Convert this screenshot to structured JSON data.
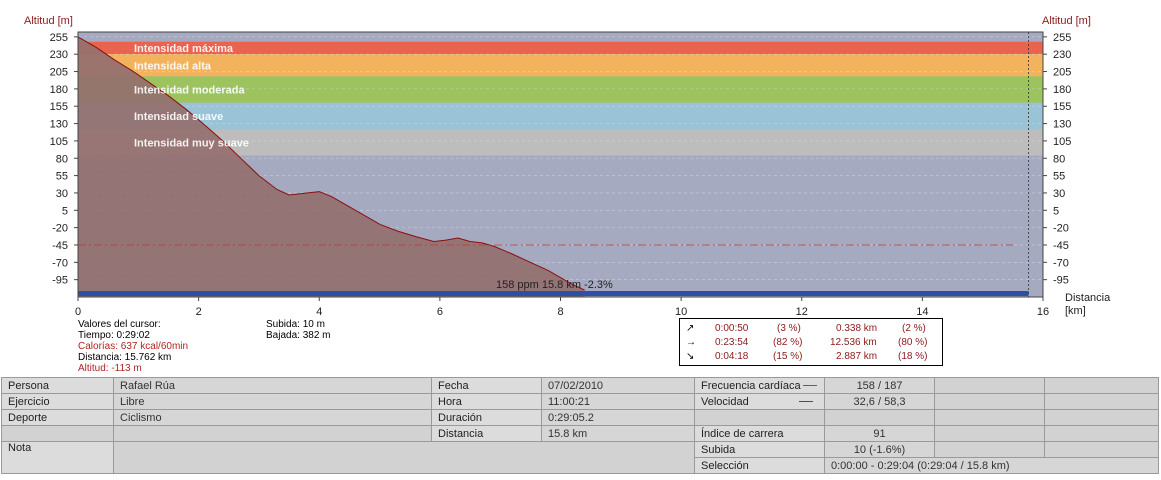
{
  "chart_data": {
    "type": "area",
    "y_left_label": "Altitud [m]",
    "y_right_label": "Altitud [m]",
    "x_label": "Distancia\n[km]",
    "xlim": [
      0,
      16
    ],
    "ylim": [
      -120,
      262
    ],
    "x_ticks": [
      "0",
      "2",
      "4",
      "6",
      "8",
      "10",
      "12",
      "14",
      "16"
    ],
    "y_ticks": [
      "255",
      "230",
      "205",
      "180",
      "155",
      "130",
      "105",
      "80",
      "55",
      "30",
      "5",
      "-20",
      "-45",
      "-70",
      "-95"
    ],
    "bands": [
      {
        "label": "Intensidad máxima",
        "from": 230,
        "to": 248,
        "color": "#e9634e"
      },
      {
        "label": "Intensidad alta",
        "from": 198,
        "to": 230,
        "color": "#f3b35c"
      },
      {
        "label": "Intensidad moderada",
        "from": 160,
        "to": 198,
        "color": "#9dc35f"
      },
      {
        "label": "Intensidad suave",
        "from": 122,
        "to": 160,
        "color": "#9bc3d8"
      },
      {
        "label": "Intensidad muy suave",
        "from": 84,
        "to": 122,
        "color": "#bdbdbd"
      }
    ],
    "background_color": "#a6aac0",
    "area_color": "#94706f",
    "line_color": "#8b0f0f",
    "speed_bar_color": "#2d4fa6",
    "hr_reference": -45,
    "altitude_series": {
      "name": "Altitud",
      "x": [
        0,
        0.3,
        0.6,
        0.9,
        1.2,
        1.5,
        1.8,
        2.1,
        2.4,
        2.7,
        3.0,
        3.3,
        3.5,
        3.7,
        4.0,
        4.2,
        4.5,
        4.8,
        5.0,
        5.3,
        5.6,
        5.9,
        6.1,
        6.3,
        6.5,
        6.7,
        6.9,
        7.2,
        7.5,
        7.8,
        8.0,
        8.2,
        8.4
      ],
      "y": [
        255,
        240,
        222,
        206,
        188,
        170,
        150,
        128,
        105,
        80,
        55,
        35,
        27,
        29,
        32,
        25,
        10,
        -5,
        -15,
        -25,
        -33,
        -40,
        -38,
        -35,
        -40,
        -42,
        -47,
        -58,
        -70,
        -82,
        -92,
        -102,
        -110
      ]
    },
    "cursor_label": "158 ppm 15.8 km -2.3%",
    "cursor_x": 15.76
  },
  "cursor": {
    "title": "Valores del cursor:",
    "time": "Tiempo: 0:29:02",
    "calories": "Calorías: 637 kcal/60min",
    "distance": "Distancia: 15.762 km",
    "altitude": "Altitud: -113 m"
  },
  "climb": {
    "up": "Subida: 10 m",
    "down": "Bajada: 382 m"
  },
  "slopes": [
    {
      "icon": "up-slope-arrow-icon",
      "arrow": "↗",
      "time": "0:00:50",
      "time_pct": "(3 %)",
      "dist": "0.338 km",
      "dist_pct": "(2 %)"
    },
    {
      "icon": "flat-arrow-icon",
      "arrow": "→",
      "time": "0:23:54",
      "time_pct": "(82 %)",
      "dist": "12.536 km",
      "dist_pct": "(80 %)"
    },
    {
      "icon": "down-slope-arrow-icon",
      "arrow": "↘",
      "time": "0:04:18",
      "time_pct": "(15 %)",
      "dist": "2.887 km",
      "dist_pct": "(18 %)"
    }
  ],
  "info": {
    "persona_label": "Persona",
    "persona": "Rafael Rúa",
    "ejercicio_label": "Ejercicio",
    "ejercicio": "Libre",
    "deporte_label": "Deporte",
    "deporte": "Ciclismo",
    "nota_label": "Nota",
    "fecha_label": "Fecha",
    "fecha": "07/02/2010",
    "hora_label": "Hora",
    "hora": "11:00:21",
    "duracion_label": "Duración",
    "duracion": "0:29:05.2",
    "distancia_label": "Distancia",
    "distancia": "15.8 km",
    "fc_label": "Frecuencia cardíaca",
    "fc": "158 / 187",
    "fc_color": "#c0392b",
    "vel_label": "Velocidad",
    "vel": "32,6 / 58,3",
    "vel_color": "#2d4fa6",
    "indice_label": "Índice de carrera",
    "indice": "91",
    "subida_label": "Subida",
    "subida": "10 (-1.6%)",
    "seleccion_label": "Selección",
    "seleccion": "0:00:00 - 0:29:04 (0:29:04 / 15.8 km)"
  }
}
